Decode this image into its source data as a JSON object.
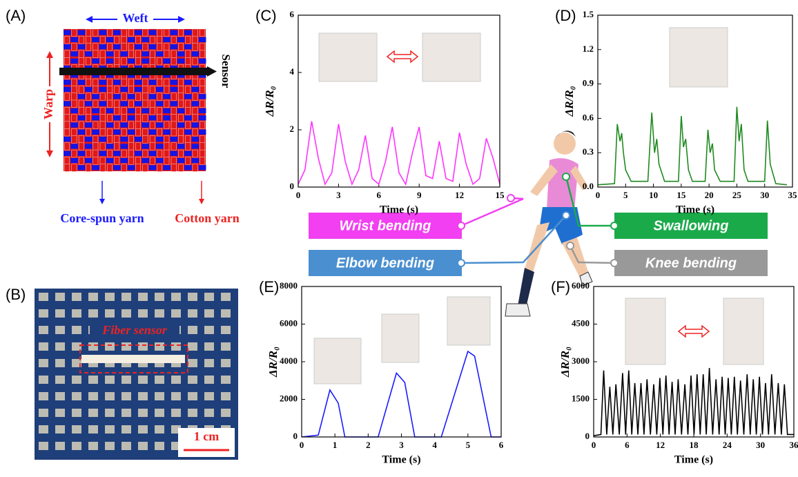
{
  "figure": {
    "a": {
      "label": "(A)",
      "weft": "Weft",
      "warp": "Warp",
      "sensor": "Sensor",
      "core": "Core-spun yarn",
      "cotton": "Cotton yarn"
    },
    "b": {
      "label": "(B)",
      "fiber": "Fiber sensor",
      "scale": "1 cm"
    },
    "legend": {
      "wrist": "Wrist bending",
      "elbow": "Elbow bending",
      "swallow": "Swallowing",
      "knee": "Knee bending"
    }
  },
  "chart_data": [
    {
      "type": "line",
      "panel_label": "(C)",
      "color": "#ff33ff",
      "xlabel": "Time (s)",
      "ylabel": "ΔR/R₀",
      "xlim": [
        0,
        15
      ],
      "ylim": [
        0,
        6
      ],
      "xticks": [
        0,
        3,
        6,
        9,
        12,
        15
      ],
      "yticks": [
        0,
        2,
        4,
        6
      ],
      "x": [
        0,
        0.5,
        1,
        1.5,
        2,
        2.5,
        3,
        3.5,
        4,
        4.5,
        5,
        5.5,
        6,
        6.5,
        7,
        7.5,
        8,
        8.5,
        9,
        9.5,
        10,
        10.5,
        11,
        11.5,
        12,
        12.5,
        13,
        13.5,
        14,
        14.5,
        15
      ],
      "values": [
        0.1,
        0.6,
        2.3,
        1.0,
        0.1,
        0.5,
        2.2,
        0.9,
        0.1,
        0.6,
        1.8,
        0.3,
        0.1,
        0.9,
        2.1,
        0.5,
        0.1,
        1.2,
        2.1,
        0.4,
        0.3,
        1.6,
        0.3,
        0.2,
        1.9,
        0.8,
        0.1,
        0.3,
        1.7,
        1.0,
        0.1
      ]
    },
    {
      "type": "line",
      "panel_label": "(D)",
      "color": "#1e8a1e",
      "xlabel": "Time (s)",
      "ylabel": "ΔR/R₀",
      "xlim": [
        0,
        35
      ],
      "ylim": [
        0,
        1.5
      ],
      "xticks": [
        0,
        5,
        10,
        15,
        20,
        25,
        30,
        35
      ],
      "yticks": [
        {
          "value": 0,
          "label": "0.0"
        },
        0.3,
        0.6,
        0.9,
        1.2,
        1.5
      ],
      "x": [
        0,
        3,
        3.5,
        4,
        4.3,
        4.6,
        5,
        6,
        9,
        9.7,
        10.2,
        10.6,
        11,
        12,
        14.5,
        15,
        15.4,
        15.8,
        16.3,
        17,
        19.3,
        19.8,
        20.2,
        20.6,
        21,
        22,
        24.5,
        25,
        25.4,
        25.8,
        26.3,
        27,
        30,
        30.5,
        31,
        32,
        34
      ],
      "values": [
        0.02,
        0.03,
        0.55,
        0.4,
        0.47,
        0.3,
        0.15,
        0.05,
        0.05,
        0.65,
        0.3,
        0.42,
        0.2,
        0.05,
        0.05,
        0.62,
        0.35,
        0.42,
        0.15,
        0.05,
        0.05,
        0.5,
        0.3,
        0.38,
        0.15,
        0.05,
        0.05,
        0.7,
        0.4,
        0.55,
        0.15,
        0.05,
        0.05,
        0.58,
        0.2,
        0.03,
        0.02
      ]
    },
    {
      "type": "line",
      "panel_label": "(E)",
      "color": "#1a1aff",
      "xlabel": "Time (s)",
      "ylabel": "ΔR/R₀",
      "xlim": [
        0,
        6
      ],
      "ylim": [
        0,
        8000
      ],
      "xticks": [
        0,
        1,
        2,
        3,
        4,
        5,
        6
      ],
      "yticks": [
        0,
        2000,
        4000,
        6000,
        8000
      ],
      "x": [
        0,
        0.5,
        0.85,
        1.1,
        1.3,
        2.3,
        2.85,
        3.1,
        3.4,
        4.2,
        5.0,
        5.2,
        5.7,
        6
      ],
      "values": [
        0,
        100,
        2500,
        1800,
        0,
        0,
        3400,
        2900,
        0,
        0,
        4550,
        4300,
        0,
        0
      ]
    },
    {
      "type": "line",
      "panel_label": "(F)",
      "color": "#000000",
      "xlabel": "Time (s)",
      "ylabel": "ΔR/R₀",
      "xlim": [
        0,
        36
      ],
      "ylim": [
        0,
        6000
      ],
      "xticks": [
        0,
        6,
        12,
        18,
        24,
        30,
        36
      ],
      "yticks": [
        0,
        1500,
        3000,
        4500,
        6000
      ],
      "x": [
        0,
        1.3,
        1.8,
        2.35,
        2.9,
        3.45,
        4.0,
        4.6,
        5.2,
        5.75,
        6.3,
        6.85,
        7.4,
        7.95,
        8.5,
        9.05,
        9.6,
        10.2,
        10.8,
        11.35,
        11.9,
        12.45,
        13.0,
        13.55,
        14.1,
        14.65,
        15.2,
        15.8,
        16.4,
        16.95,
        17.5,
        18.05,
        18.6,
        19.15,
        19.7,
        20.25,
        20.8,
        21.4,
        22.0,
        22.55,
        23.1,
        23.65,
        24.2,
        24.75,
        25.3,
        25.85,
        26.4,
        27.0,
        27.6,
        28.15,
        28.7,
        29.25,
        29.8,
        30.35,
        30.9,
        31.45,
        32.0,
        32.6,
        33.2,
        33.75,
        34.3,
        34.85,
        36
      ],
      "values": [
        50,
        100,
        2650,
        100,
        2000,
        100,
        2100,
        100,
        2550,
        100,
        2650,
        100,
        2150,
        100,
        2150,
        100,
        2300,
        100,
        2100,
        100,
        2350,
        100,
        2450,
        100,
        2200,
        100,
        2300,
        100,
        2100,
        100,
        2450,
        100,
        2500,
        100,
        2500,
        100,
        2750,
        100,
        2300,
        100,
        2400,
        100,
        2350,
        100,
        2400,
        100,
        2250,
        100,
        2500,
        100,
        2300,
        100,
        2400,
        100,
        2150,
        100,
        2500,
        100,
        2150,
        100,
        2100,
        100,
        100
      ]
    }
  ]
}
